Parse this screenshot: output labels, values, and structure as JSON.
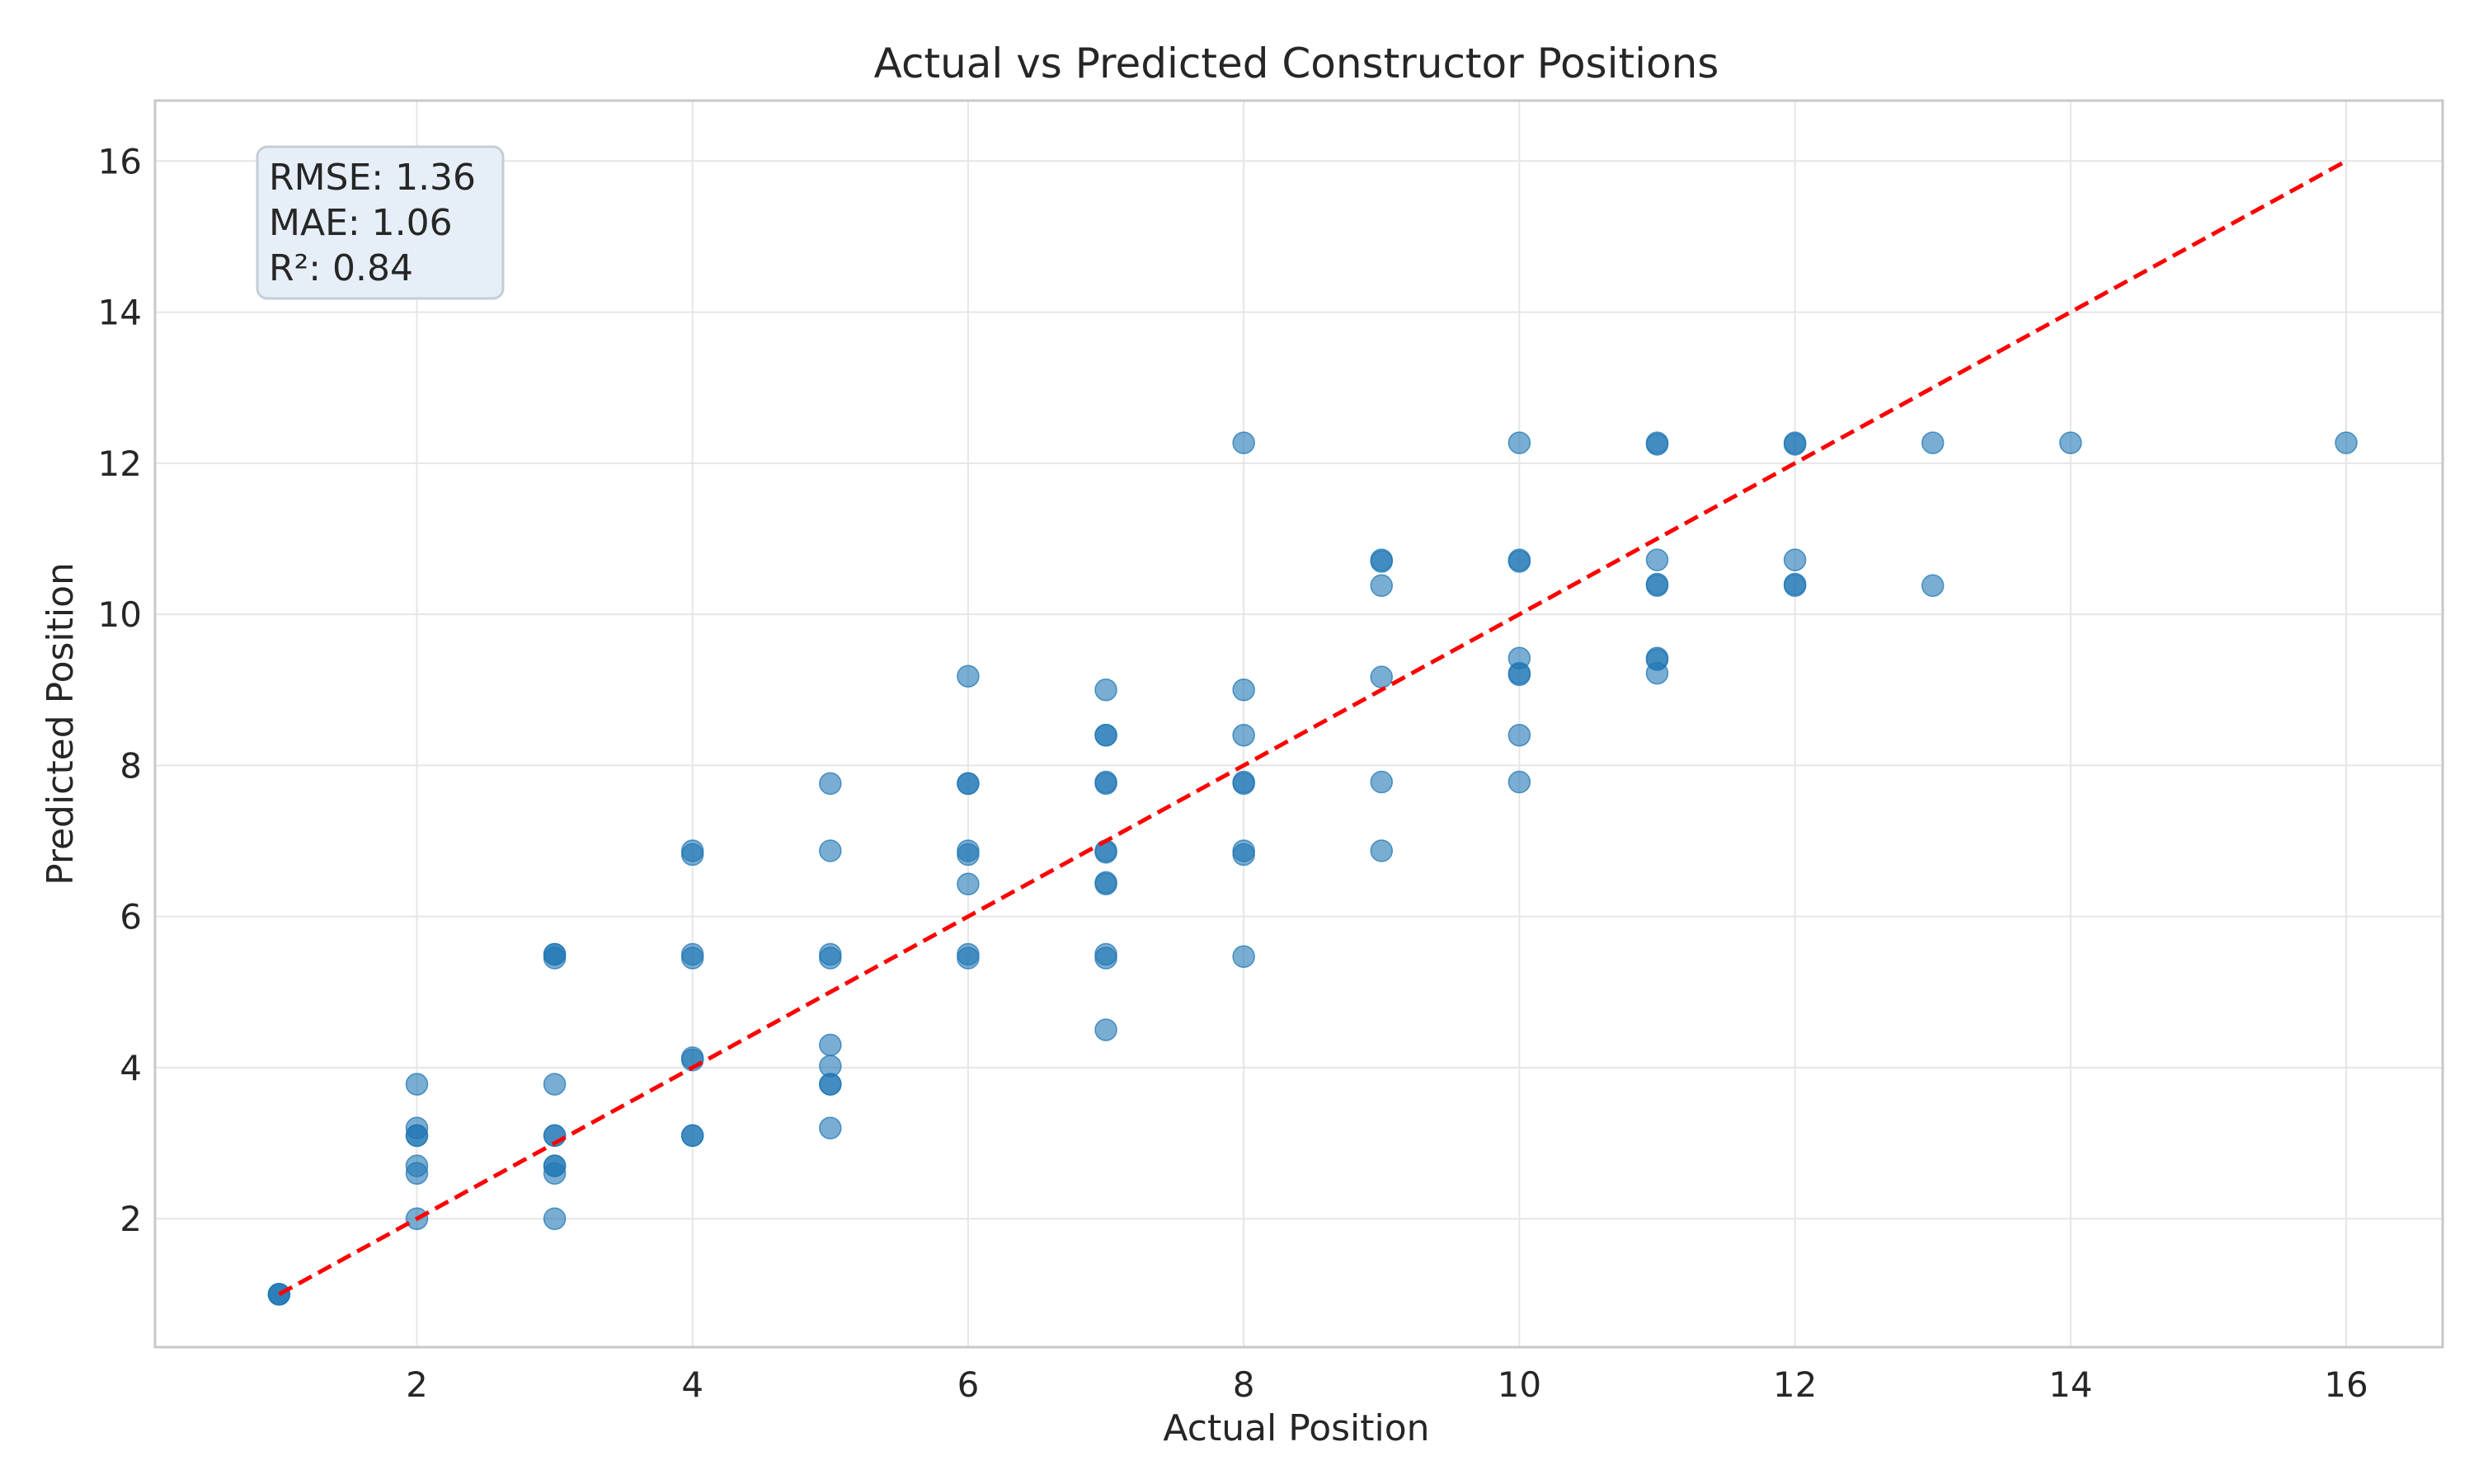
{
  "chart_data": {
    "type": "scatter",
    "title": "Actual vs Predicted Constructor Positions",
    "xlabel": "Actual Position",
    "ylabel": "Predicted Position",
    "xlim": [
      0.1,
      16.7
    ],
    "ylim": [
      0.3,
      16.8
    ],
    "xticks": [
      2,
      4,
      6,
      8,
      10,
      12,
      14,
      16
    ],
    "yticks": [
      2,
      4,
      6,
      8,
      10,
      12,
      14,
      16
    ],
    "grid": true,
    "point_color": "#1f77b4",
    "point_alpha": 0.6,
    "reference_line": {
      "x": [
        1,
        16
      ],
      "y": [
        1,
        16
      ],
      "color": "#ff0000",
      "style": "dashed"
    },
    "metrics": [
      "RMSE: 1.36",
      "MAE: 1.06",
      "R²: 0.84"
    ],
    "points": [
      [
        1,
        1.0
      ],
      [
        1,
        1.0
      ],
      [
        1,
        1.0
      ],
      [
        2,
        3.78
      ],
      [
        2,
        3.2
      ],
      [
        2,
        3.1
      ],
      [
        2,
        3.1
      ],
      [
        2,
        2.7
      ],
      [
        2,
        2.6
      ],
      [
        2,
        2.0
      ],
      [
        3,
        5.5
      ],
      [
        3,
        5.5
      ],
      [
        3,
        5.45
      ],
      [
        3,
        3.78
      ],
      [
        3,
        3.1
      ],
      [
        3,
        3.1
      ],
      [
        3,
        2.7
      ],
      [
        3,
        2.7
      ],
      [
        3,
        2.6
      ],
      [
        3,
        2.0
      ],
      [
        4,
        6.87
      ],
      [
        4,
        6.82
      ],
      [
        4,
        5.5
      ],
      [
        4,
        5.45
      ],
      [
        4,
        4.13
      ],
      [
        4,
        4.1
      ],
      [
        4,
        3.1
      ],
      [
        4,
        3.1
      ],
      [
        5,
        7.76
      ],
      [
        5,
        6.87
      ],
      [
        5,
        5.5
      ],
      [
        5,
        5.45
      ],
      [
        5,
        4.3
      ],
      [
        5,
        4.02
      ],
      [
        5,
        3.78
      ],
      [
        5,
        3.78
      ],
      [
        5,
        3.2
      ],
      [
        6,
        9.18
      ],
      [
        6,
        7.76
      ],
      [
        6,
        7.76
      ],
      [
        6,
        6.87
      ],
      [
        6,
        6.82
      ],
      [
        6,
        6.43
      ],
      [
        6,
        5.5
      ],
      [
        6,
        5.45
      ],
      [
        7,
        9.0
      ],
      [
        7,
        8.4
      ],
      [
        7,
        8.4
      ],
      [
        7,
        7.78
      ],
      [
        7,
        7.76
      ],
      [
        7,
        6.87
      ],
      [
        7,
        6.85
      ],
      [
        7,
        6.45
      ],
      [
        7,
        6.43
      ],
      [
        7,
        5.5
      ],
      [
        7,
        5.45
      ],
      [
        7,
        4.5
      ],
      [
        8,
        12.27
      ],
      [
        8,
        9.0
      ],
      [
        8,
        8.4
      ],
      [
        8,
        7.78
      ],
      [
        8,
        7.76
      ],
      [
        8,
        6.87
      ],
      [
        8,
        6.82
      ],
      [
        8,
        5.47
      ],
      [
        9,
        10.72
      ],
      [
        9,
        10.7
      ],
      [
        9,
        10.38
      ],
      [
        9,
        9.17
      ],
      [
        9,
        7.78
      ],
      [
        9,
        6.87
      ],
      [
        10,
        12.27
      ],
      [
        10,
        10.72
      ],
      [
        10,
        10.7
      ],
      [
        10,
        9.42
      ],
      [
        10,
        9.22
      ],
      [
        10,
        9.2
      ],
      [
        10,
        8.4
      ],
      [
        10,
        7.78
      ],
      [
        11,
        12.27
      ],
      [
        11,
        12.25
      ],
      [
        11,
        10.72
      ],
      [
        11,
        10.4
      ],
      [
        11,
        10.38
      ],
      [
        11,
        9.42
      ],
      [
        11,
        9.4
      ],
      [
        11,
        9.22
      ],
      [
        12,
        12.27
      ],
      [
        12,
        12.25
      ],
      [
        12,
        10.72
      ],
      [
        12,
        10.4
      ],
      [
        12,
        10.38
      ],
      [
        13,
        12.27
      ],
      [
        13,
        10.38
      ],
      [
        14,
        12.27
      ],
      [
        16,
        12.27
      ]
    ]
  }
}
